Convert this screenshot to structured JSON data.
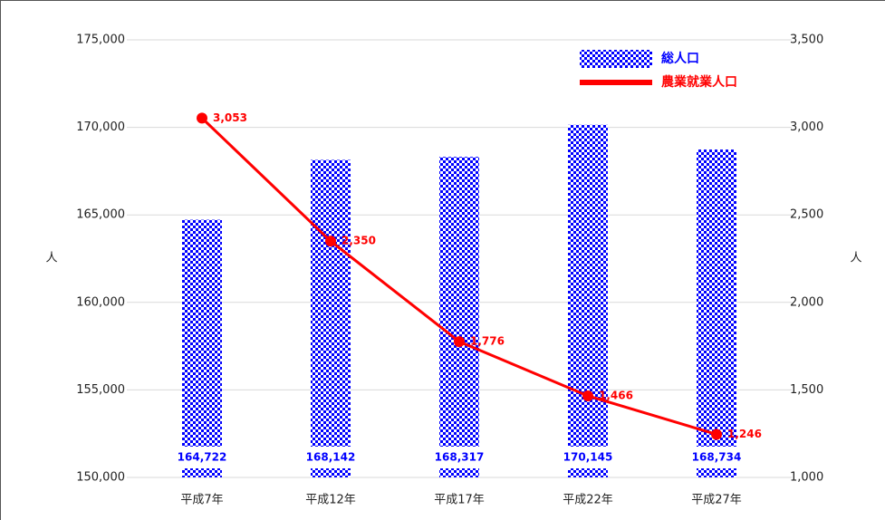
{
  "chart_data": {
    "type": "bar",
    "categories": [
      "平成7年",
      "平成12年",
      "平成17年",
      "平成22年",
      "平成27年"
    ],
    "series": [
      {
        "name": "総人口",
        "color": "#0000ff",
        "values": [
          164722,
          168142,
          168317,
          170145,
          168734
        ],
        "value_labels": [
          "164,722",
          "168,142",
          "168,317",
          "170,145",
          "168,734"
        ]
      },
      {
        "name": "農業就業人口",
        "color": "#ff0000",
        "axis": "y2",
        "values": [
          3053,
          2350,
          1776,
          1466,
          1246
        ],
        "value_labels": [
          "3,053",
          "2,350",
          "1,776",
          "1,466",
          "1,246"
        ]
      }
    ],
    "ylabel": "人",
    "y2label": "人",
    "ylim": [
      150000,
      175000
    ],
    "yticks": [
      {
        "value": 150000,
        "label": "150,000"
      },
      {
        "value": 155000,
        "label": "155,000"
      },
      {
        "value": 160000,
        "label": "160,000"
      },
      {
        "value": 165000,
        "label": "165,000"
      },
      {
        "value": 170000,
        "label": "170,000"
      },
      {
        "value": 175000,
        "label": "175,000"
      }
    ],
    "y2lim": [
      1000,
      3500
    ],
    "y2ticks": [
      {
        "value": 1000,
        "label": "1,000"
      },
      {
        "value": 1500,
        "label": "1,500"
      },
      {
        "value": 2000,
        "label": "2,000"
      },
      {
        "value": 2500,
        "label": "2,500"
      },
      {
        "value": 3000,
        "label": "3,000"
      },
      {
        "value": 3500,
        "label": "3,500"
      }
    ],
    "grid": true,
    "legend": "top-right"
  }
}
